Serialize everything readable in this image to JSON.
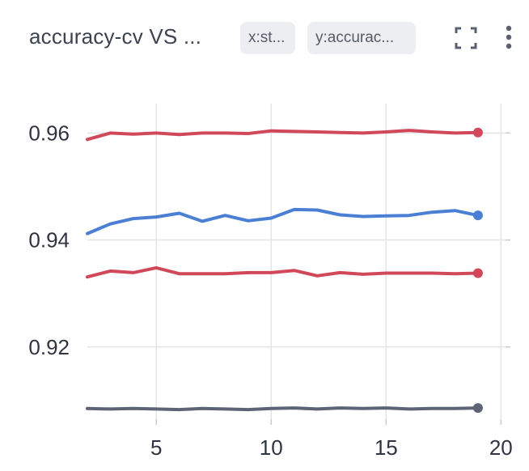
{
  "header": {
    "title": "accuracy-cv VS ...",
    "x_chip": "x:st...",
    "y_chip": "y:accurac...",
    "fullscreen_icon": "fullscreen-icon",
    "menu_icon": "more-vertical-icon"
  },
  "chart_data": {
    "type": "line",
    "title": "",
    "xlabel": "",
    "ylabel": "",
    "xlim": [
      2,
      20.2
    ],
    "ylim": [
      0.9065,
      0.9655
    ],
    "x_ticks": [
      5,
      10,
      15,
      20
    ],
    "y_ticks": [
      0.92,
      0.94,
      0.96
    ],
    "x_tick_labels": [
      "5",
      "10",
      "15",
      "20"
    ],
    "y_tick_labels": [
      "0.92",
      "0.94",
      "0.96"
    ],
    "grid": true,
    "x": [
      2,
      3,
      4,
      5,
      6,
      7,
      8,
      9,
      10,
      11,
      12,
      13,
      14,
      15,
      16,
      17,
      18,
      19
    ],
    "series": [
      {
        "color": "#d0485a",
        "values": [
          0.9588,
          0.96,
          0.9598,
          0.96,
          0.9597,
          0.96,
          0.96,
          0.9599,
          0.9604,
          0.9603,
          0.9602,
          0.9601,
          0.96,
          0.9602,
          0.9605,
          0.9602,
          0.96,
          0.9601
        ]
      },
      {
        "color": "#4a7fd4",
        "values": [
          0.9412,
          0.943,
          0.944,
          0.9443,
          0.945,
          0.9435,
          0.9446,
          0.9436,
          0.9441,
          0.9457,
          0.9456,
          0.9447,
          0.9444,
          0.9445,
          0.9446,
          0.9452,
          0.9455,
          0.9446
        ]
      },
      {
        "color": "#d0485a",
        "values": [
          0.9331,
          0.9342,
          0.9339,
          0.9348,
          0.9337,
          0.9337,
          0.9337,
          0.9339,
          0.9339,
          0.9343,
          0.9333,
          0.9339,
          0.9336,
          0.9338,
          0.9338,
          0.9338,
          0.9337,
          0.9338
        ]
      },
      {
        "color": "#5c6475",
        "values": [
          0.9085,
          0.9084,
          0.9085,
          0.9084,
          0.9083,
          0.9085,
          0.9084,
          0.9083,
          0.9085,
          0.9086,
          0.9084,
          0.9086,
          0.9085,
          0.9086,
          0.9084,
          0.9085,
          0.9085,
          0.9086
        ]
      }
    ]
  }
}
